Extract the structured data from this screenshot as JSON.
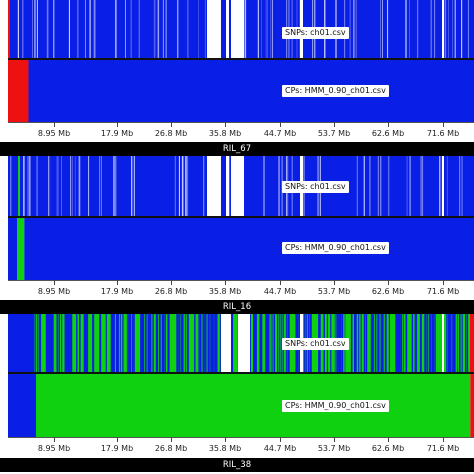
{
  "colors": {
    "blue": "#0a1fe6",
    "green": "#0fd10f",
    "red": "#ee1111",
    "white": "#ffffff",
    "black": "#000000"
  },
  "axis": {
    "ticks": [
      "8.95 Mb",
      "17.9 Mb",
      "26.8 Mb",
      "35.8 Mb",
      "44.7 Mb",
      "53.7 Mb",
      "62.6 Mb",
      "71.6 Mb"
    ]
  },
  "panels": [
    {
      "name": "RIL_67",
      "snp_label": "SNPs: ch01.csv",
      "cp_label": "CPs: HMM_0.90_ch01.csv",
      "snp_base": "blue",
      "cp_segments": [
        {
          "start": 0.0,
          "end": 0.044,
          "color": "red"
        },
        {
          "start": 0.044,
          "end": 1.0,
          "color": "blue"
        }
      ]
    },
    {
      "name": "RIL_16",
      "snp_label": "SNPs: ch01.csv",
      "cp_label": "CPs: HMM_0.90_ch01.csv",
      "snp_base": "blue",
      "cp_segments": [
        {
          "start": 0.0,
          "end": 0.02,
          "color": "blue"
        },
        {
          "start": 0.02,
          "end": 0.035,
          "color": "green"
        },
        {
          "start": 0.035,
          "end": 1.0,
          "color": "blue"
        }
      ]
    },
    {
      "name": "RIL_38",
      "snp_label": "SNPs: ch01.csv",
      "cp_label": "CPs: HMM_0.90_ch01.csv",
      "snp_base": "green",
      "cp_segments": [
        {
          "start": 0.0,
          "end": 0.06,
          "color": "blue"
        },
        {
          "start": 0.06,
          "end": 0.992,
          "color": "green"
        },
        {
          "start": 0.992,
          "end": 1.0,
          "color": "red"
        }
      ]
    }
  ]
}
